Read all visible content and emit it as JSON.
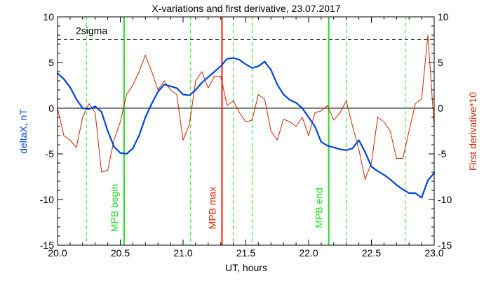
{
  "chart_data": {
    "type": "line",
    "title": "X-variations and first derivative, 23.07.2017",
    "xlabel": "UT, hours",
    "ylabel_left": "deltaX, nT",
    "ylabel_right": "First derivative*10",
    "xlim": [
      20.0,
      23.0
    ],
    "ylim": [
      -15,
      10
    ],
    "xticks": [
      20.0,
      20.5,
      21.0,
      21.5,
      22.0,
      22.5,
      23.0
    ],
    "xtick_labels": [
      "20.0",
      "20.5",
      "21.0",
      "21.5",
      "22.0",
      "22.5",
      "23.0"
    ],
    "yticks": [
      -15,
      -10,
      -5,
      0,
      5,
      10
    ],
    "ytick_labels_left": [
      "-15",
      "-10",
      "-5",
      "0",
      "5",
      "10"
    ],
    "ytick_labels_right": [
      "-15",
      "-10",
      "-5",
      "0",
      "5",
      "10"
    ],
    "grid": false,
    "series": [
      {
        "color": "#0044dd",
        "axis": "left",
        "x": [
          20.0,
          20.05,
          20.1,
          20.15,
          20.2,
          20.25,
          20.3,
          20.35,
          20.4,
          20.45,
          20.5,
          20.55,
          20.6,
          20.65,
          20.7,
          20.75,
          20.8,
          20.85,
          20.9,
          20.95,
          21.0,
          21.05,
          21.1,
          21.15,
          21.2,
          21.25,
          21.3,
          21.35,
          21.4,
          21.45,
          21.5,
          21.55,
          21.6,
          21.65,
          21.7,
          21.75,
          21.8,
          21.85,
          21.9,
          21.95,
          22.0,
          22.05,
          22.1,
          22.15,
          22.2,
          22.25,
          22.3,
          22.35,
          22.4,
          22.45,
          22.5,
          22.55,
          22.6,
          22.65,
          22.7,
          22.75,
          22.8,
          22.85,
          22.9,
          22.95,
          23.0
        ],
        "y": [
          3.8,
          3.2,
          2.3,
          1.0,
          0.0,
          -0.1,
          0.2,
          -0.4,
          -2.5,
          -4.2,
          -4.9,
          -5.0,
          -4.4,
          -3.0,
          -1.0,
          0.5,
          1.8,
          2.6,
          2.4,
          2.2,
          1.5,
          1.4,
          2.0,
          2.8,
          3.4,
          4.0,
          4.6,
          5.4,
          5.5,
          5.3,
          4.8,
          4.4,
          4.6,
          5.1,
          4.2,
          2.6,
          1.5,
          0.9,
          0.6,
          0.0,
          -1.0,
          -2.0,
          -3.7,
          -4.1,
          -4.3,
          -4.5,
          -4.6,
          -4.4,
          -3.5,
          -4.8,
          -6.4,
          -6.9,
          -7.3,
          -7.8,
          -8.4,
          -8.9,
          -9.3,
          -9.3,
          -9.8,
          -7.9,
          -7.1
        ]
      },
      {
        "color": "#cc2200",
        "axis": "right",
        "x": [
          20.0,
          20.05,
          20.1,
          20.15,
          20.2,
          20.25,
          20.3,
          20.35,
          20.4,
          20.45,
          20.5,
          20.55,
          20.6,
          20.65,
          20.7,
          20.75,
          20.8,
          20.85,
          20.9,
          20.95,
          21.0,
          21.05,
          21.1,
          21.15,
          21.2,
          21.25,
          21.3,
          21.35,
          21.4,
          21.45,
          21.5,
          21.55,
          21.6,
          21.65,
          21.7,
          21.75,
          21.8,
          21.85,
          21.9,
          21.95,
          22.0,
          22.05,
          22.1,
          22.15,
          22.2,
          22.25,
          22.3,
          22.35,
          22.4,
          22.45,
          22.5,
          22.55,
          22.6,
          22.65,
          22.7,
          22.75,
          22.8,
          22.85,
          22.9,
          22.95,
          23.0
        ],
        "y": [
          0.0,
          -3.0,
          -3.5,
          -4.3,
          -1.0,
          0.5,
          -0.5,
          -7.0,
          -6.8,
          -3.5,
          -1.5,
          1.5,
          2.5,
          4.0,
          5.8,
          4.0,
          2.0,
          3.0,
          2.0,
          1.5,
          -3.5,
          -1.8,
          3.0,
          4.0,
          2.2,
          3.5,
          3.5,
          0.3,
          0.8,
          -0.5,
          -1.5,
          -1.3,
          1.5,
          1.0,
          -2.5,
          -3.5,
          -1.2,
          -1.5,
          -2.0,
          -1.0,
          -3.0,
          -0.5,
          -0.3,
          0.3,
          -1.3,
          -0.5,
          0.8,
          -2.0,
          -4.5,
          -7.8,
          -6.0,
          -1.0,
          -1.5,
          -2.5,
          -5.5,
          -5.5,
          -2.5,
          0.5,
          1.0,
          8.0,
          -2.0
        ]
      }
    ],
    "reference_lines": [
      {
        "type": "horizontal",
        "value": 0,
        "color": "#000000",
        "style": "solid"
      },
      {
        "type": "horizontal",
        "value": 7.5,
        "color": "#000000",
        "style": "dashed",
        "label": "2sigma"
      },
      {
        "type": "vertical",
        "value": 20.53,
        "color": "#22dd22",
        "style": "solid",
        "label": "MPB begin"
      },
      {
        "type": "vertical",
        "value": 21.31,
        "color": "#ee2200",
        "style": "solid",
        "label": "MPB max"
      },
      {
        "type": "vertical",
        "value": 22.16,
        "color": "#22dd22",
        "style": "solid",
        "label": "MPB end"
      },
      {
        "type": "vertical",
        "value": 20.23,
        "color": "#22dd22",
        "style": "dashed"
      },
      {
        "type": "vertical",
        "value": 21.06,
        "color": "#22dd22",
        "style": "dashed"
      },
      {
        "type": "vertical",
        "value": 21.4,
        "color": "#22dd22",
        "style": "dashed"
      },
      {
        "type": "vertical",
        "value": 21.55,
        "color": "#22dd22",
        "style": "dashed"
      },
      {
        "type": "vertical",
        "value": 22.3,
        "color": "#22dd22",
        "style": "dashed"
      },
      {
        "type": "vertical",
        "value": 22.77,
        "color": "#22dd22",
        "style": "dashed"
      }
    ]
  }
}
